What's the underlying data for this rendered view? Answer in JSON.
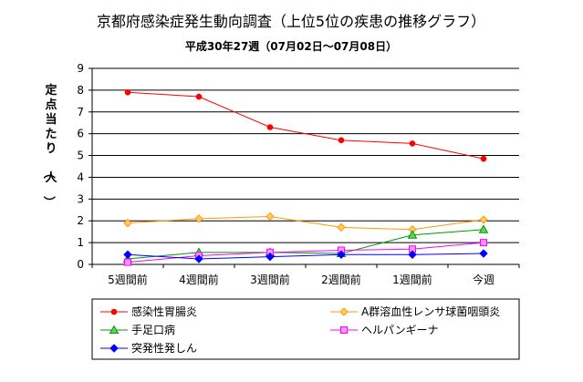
{
  "chart_data": {
    "type": "line",
    "title": "京都府感染症発生動向調査（上位5位の疾患の推移グラフ）",
    "subtitle": "平成30年27週（07月02日〜07月08日）",
    "ylabel": "定点当たり（人）",
    "xlabel": "",
    "ylim": [
      0,
      9
    ],
    "yticks": [
      0,
      1,
      2,
      3,
      4,
      5,
      6,
      7,
      8,
      9
    ],
    "grid": true,
    "legend_position": "bottom",
    "categories": [
      "5週間前",
      "4週間前",
      "3週間前",
      "2週間前",
      "1週間前",
      "今週"
    ],
    "series": [
      {
        "name": "感染性胃腸炎",
        "color": "#ff0000",
        "marker": "circle",
        "values": [
          7.9,
          7.7,
          6.3,
          5.7,
          5.55,
          4.85
        ]
      },
      {
        "name": "A群溶血性レンサ球菌咽頭炎",
        "color": "#ff9900",
        "marker": "diamond",
        "values": [
          1.9,
          2.1,
          2.2,
          1.7,
          1.6,
          2.05
        ]
      },
      {
        "name": "手足口病",
        "color": "#009900",
        "marker": "triangle",
        "values": [
          0.25,
          0.55,
          0.55,
          0.5,
          1.35,
          1.6
        ]
      },
      {
        "name": "ヘルパンギーナ",
        "color": "#ff00ff",
        "marker": "square",
        "values": [
          0.1,
          0.4,
          0.55,
          0.65,
          0.7,
          1.0
        ]
      },
      {
        "name": "突発性発しん",
        "color": "#0000ff",
        "marker": "diamond",
        "values": [
          0.45,
          0.25,
          0.35,
          0.45,
          0.45,
          0.5
        ]
      }
    ]
  }
}
